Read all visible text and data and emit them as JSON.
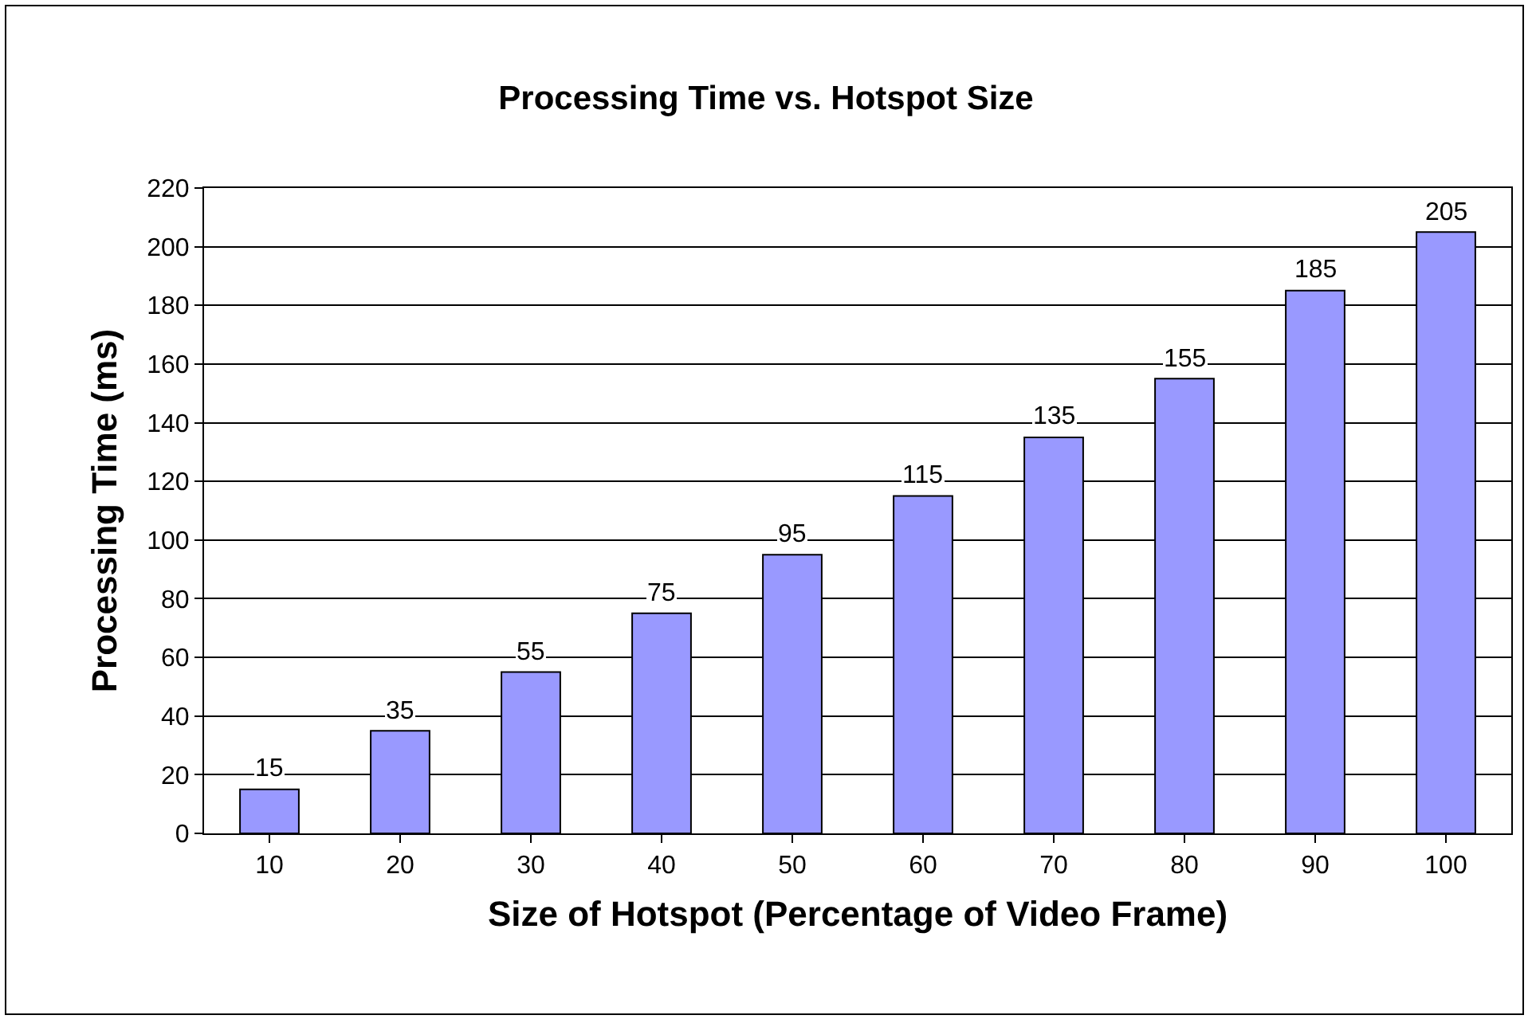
{
  "chart_data": {
    "type": "bar",
    "title": "Processing Time vs. Hotspot Size",
    "xlabel": "Size of Hotspot (Percentage of Video Frame)",
    "ylabel": "Processing Time (ms)",
    "categories": [
      "10",
      "20",
      "30",
      "40",
      "50",
      "60",
      "70",
      "80",
      "90",
      "100"
    ],
    "values": [
      15,
      35,
      55,
      75,
      95,
      115,
      135,
      155,
      185,
      205
    ],
    "color": "#9999ff",
    "ylim": [
      0,
      220
    ],
    "yticks": [
      0,
      20,
      40,
      60,
      80,
      100,
      120,
      140,
      160,
      180,
      200,
      220
    ],
    "grid": "y",
    "data_labels": true
  }
}
